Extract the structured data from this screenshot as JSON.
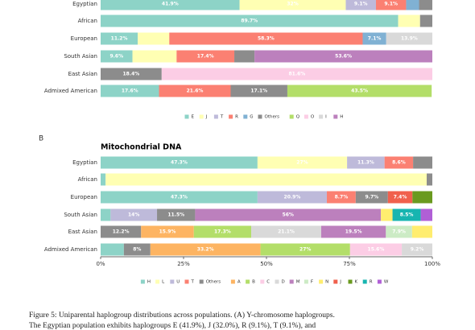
{
  "chart_data": [
    {
      "type": "stacked-barh",
      "categories": [
        "Egyptian",
        "African",
        "European",
        "South Asian",
        "East Asian",
        "Admixed American"
      ],
      "series": [
        {
          "name": "E",
          "color": "#8dd3c7",
          "values": [
            41.9,
            89.7,
            11.2,
            9.6,
            null,
            17.6
          ],
          "value_labels": [
            "41.9%",
            "89.7%",
            "11.2%",
            "9.6%",
            null,
            "17.6%"
          ]
        },
        {
          "name": "J",
          "color": "#ffffb3",
          "values": [
            32.0,
            6.6,
            9.5,
            13.3,
            null,
            null
          ],
          "value_labels": [
            "32%",
            null,
            null,
            null,
            null,
            null
          ]
        },
        {
          "name": "T",
          "color": "#bebada",
          "values": [
            9.1,
            null,
            null,
            null,
            null,
            null
          ],
          "value_labels": [
            "9.1%",
            null,
            null,
            null,
            null,
            null
          ]
        },
        {
          "name": "R",
          "color": "#fb8072",
          "values": [
            9.1,
            null,
            58.3,
            17.4,
            null,
            21.6
          ],
          "value_labels": [
            "9.1%",
            null,
            "58.3%",
            "17.4%",
            null,
            "21.6%"
          ]
        },
        {
          "name": "G",
          "color": "#80b1d3",
          "values": [
            3.9,
            null,
            7.1,
            null,
            null,
            null
          ],
          "value_labels": [
            null,
            null,
            "7.1%",
            null,
            null,
            null
          ]
        },
        {
          "name": "Others",
          "color": "#8c8c8c",
          "values": [
            4.0,
            3.7,
            null,
            6.1,
            18.4,
            17.1
          ],
          "value_labels": [
            null,
            null,
            null,
            null,
            "18.4%",
            "17.1%"
          ]
        },
        {
          "name": "Q",
          "color": "#b3de69",
          "values": [
            null,
            null,
            null,
            null,
            null,
            43.5
          ],
          "value_labels": [
            null,
            null,
            null,
            null,
            null,
            "43.5%"
          ]
        },
        {
          "name": "O",
          "color": "#fccde5",
          "values": [
            null,
            null,
            null,
            null,
            81.6,
            null
          ],
          "value_labels": [
            null,
            null,
            null,
            null,
            "81.6%",
            null
          ]
        },
        {
          "name": "I",
          "color": "#d9d9d9",
          "values": [
            null,
            null,
            13.9,
            null,
            null,
            null
          ],
          "value_labels": [
            null,
            null,
            "13.9%",
            null,
            null,
            null
          ]
        },
        {
          "name": "H",
          "color": "#bc80bd",
          "values": [
            null,
            null,
            null,
            53.6,
            null,
            null
          ],
          "value_labels": [
            null,
            null,
            null,
            "53.6%",
            null,
            null
          ]
        }
      ],
      "xlim": [
        0,
        100
      ]
    },
    {
      "type": "stacked-barh",
      "panel_label": "B",
      "title": "Mitochondrial DNA",
      "categories": [
        "Egyptian",
        "African",
        "European",
        "South Asian",
        "East Asian",
        "Admixed American"
      ],
      "series": [
        {
          "name": "H",
          "color": "#8dd3c7",
          "values": [
            47.3,
            1.5,
            47.3,
            3.0,
            null,
            7.0
          ],
          "value_labels": [
            "47.3%",
            null,
            "47.3%",
            null,
            null,
            null
          ]
        },
        {
          "name": "L",
          "color": "#ffffb3",
          "values": [
            27.0,
            96.8,
            null,
            null,
            null,
            null
          ],
          "value_labels": [
            "27%",
            null,
            null,
            null,
            null,
            null
          ]
        },
        {
          "name": "U",
          "color": "#bebada",
          "values": [
            11.3,
            null,
            20.9,
            14,
            null,
            null
          ],
          "value_labels": [
            "11.3%",
            null,
            "20.9%",
            "14%",
            null,
            null
          ]
        },
        {
          "name": "T",
          "color": "#fb8072",
          "values": [
            8.6,
            null,
            8.7,
            null,
            null,
            null
          ],
          "value_labels": [
            "8.6%",
            null,
            "8.7%",
            null,
            null,
            null
          ]
        },
        {
          "name": "Others",
          "color": "#8c8c8c",
          "values": [
            5.8,
            1.7,
            9.7,
            11.5,
            12.2,
            8
          ],
          "value_labels": [
            null,
            null,
            "9.7%",
            "11.5%",
            "12.2%",
            "8%"
          ]
        },
        {
          "name": "A",
          "color": "#fdb462",
          "values": [
            null,
            null,
            null,
            null,
            15.9,
            33.2
          ],
          "value_labels": [
            null,
            null,
            null,
            null,
            "15.9%",
            "33.2%"
          ]
        },
        {
          "name": "B",
          "color": "#b3de69",
          "values": [
            null,
            null,
            null,
            null,
            17.3,
            27
          ],
          "value_labels": [
            null,
            null,
            null,
            null,
            "17.3%",
            "27%"
          ]
        },
        {
          "name": "C",
          "color": "#fccde5",
          "values": [
            null,
            null,
            null,
            null,
            null,
            15.6
          ],
          "value_labels": [
            null,
            null,
            null,
            null,
            null,
            "15.6%"
          ]
        },
        {
          "name": "D",
          "color": "#d9d9d9",
          "values": [
            null,
            null,
            null,
            null,
            21.1,
            9.2
          ],
          "value_labels": [
            null,
            null,
            null,
            null,
            "21.1%",
            "9.2%"
          ]
        },
        {
          "name": "M",
          "color": "#bc80bd",
          "values": [
            null,
            null,
            null,
            56,
            19.5,
            null
          ],
          "value_labels": [
            null,
            null,
            null,
            "56%",
            "19.5%",
            null
          ]
        },
        {
          "name": "F",
          "color": "#ccebc5",
          "values": [
            null,
            null,
            null,
            null,
            7.9,
            null
          ],
          "value_labels": [
            null,
            null,
            null,
            null,
            "7.9%",
            null
          ]
        },
        {
          "name": "N",
          "color": "#ffed6f",
          "values": [
            null,
            null,
            null,
            3.5,
            6.1,
            null
          ],
          "value_labels": [
            null,
            null,
            null,
            null,
            null,
            null
          ]
        },
        {
          "name": "J",
          "color": "#f0604d",
          "values": [
            null,
            null,
            7.4,
            null,
            null,
            null
          ],
          "value_labels": [
            null,
            null,
            "7.4%",
            null,
            null,
            null
          ]
        },
        {
          "name": "K",
          "color": "#6a9a1f",
          "values": [
            null,
            null,
            6.0,
            null,
            null,
            null
          ],
          "value_labels": [
            null,
            null,
            null,
            null,
            null,
            null
          ]
        },
        {
          "name": "R",
          "color": "#17b5b0",
          "values": [
            null,
            null,
            null,
            8.5,
            null,
            null
          ],
          "value_labels": [
            null,
            null,
            null,
            "8.5%",
            null,
            null
          ]
        },
        {
          "name": "W",
          "color": "#b05fd6",
          "values": [
            null,
            null,
            null,
            3.5,
            null,
            null
          ],
          "value_labels": [
            null,
            null,
            null,
            null,
            null,
            null
          ]
        }
      ],
      "xlim": [
        0,
        100
      ],
      "xticks": [
        {
          "value": 0,
          "label": "0%"
        },
        {
          "value": 25,
          "label": "25%"
        },
        {
          "value": 50,
          "label": "50%"
        },
        {
          "value": 75,
          "label": "75%"
        },
        {
          "value": 100,
          "label": "100%"
        }
      ]
    }
  ],
  "caption": [
    "Figure 5: Uniparental haplogroup distributions across populations. (A) Y-chromosome haplogroups.",
    "The Egyptian population exhibits haplogroups E (41.9%), J (32.0%), R (9.1%), T (9.1%), and"
  ]
}
